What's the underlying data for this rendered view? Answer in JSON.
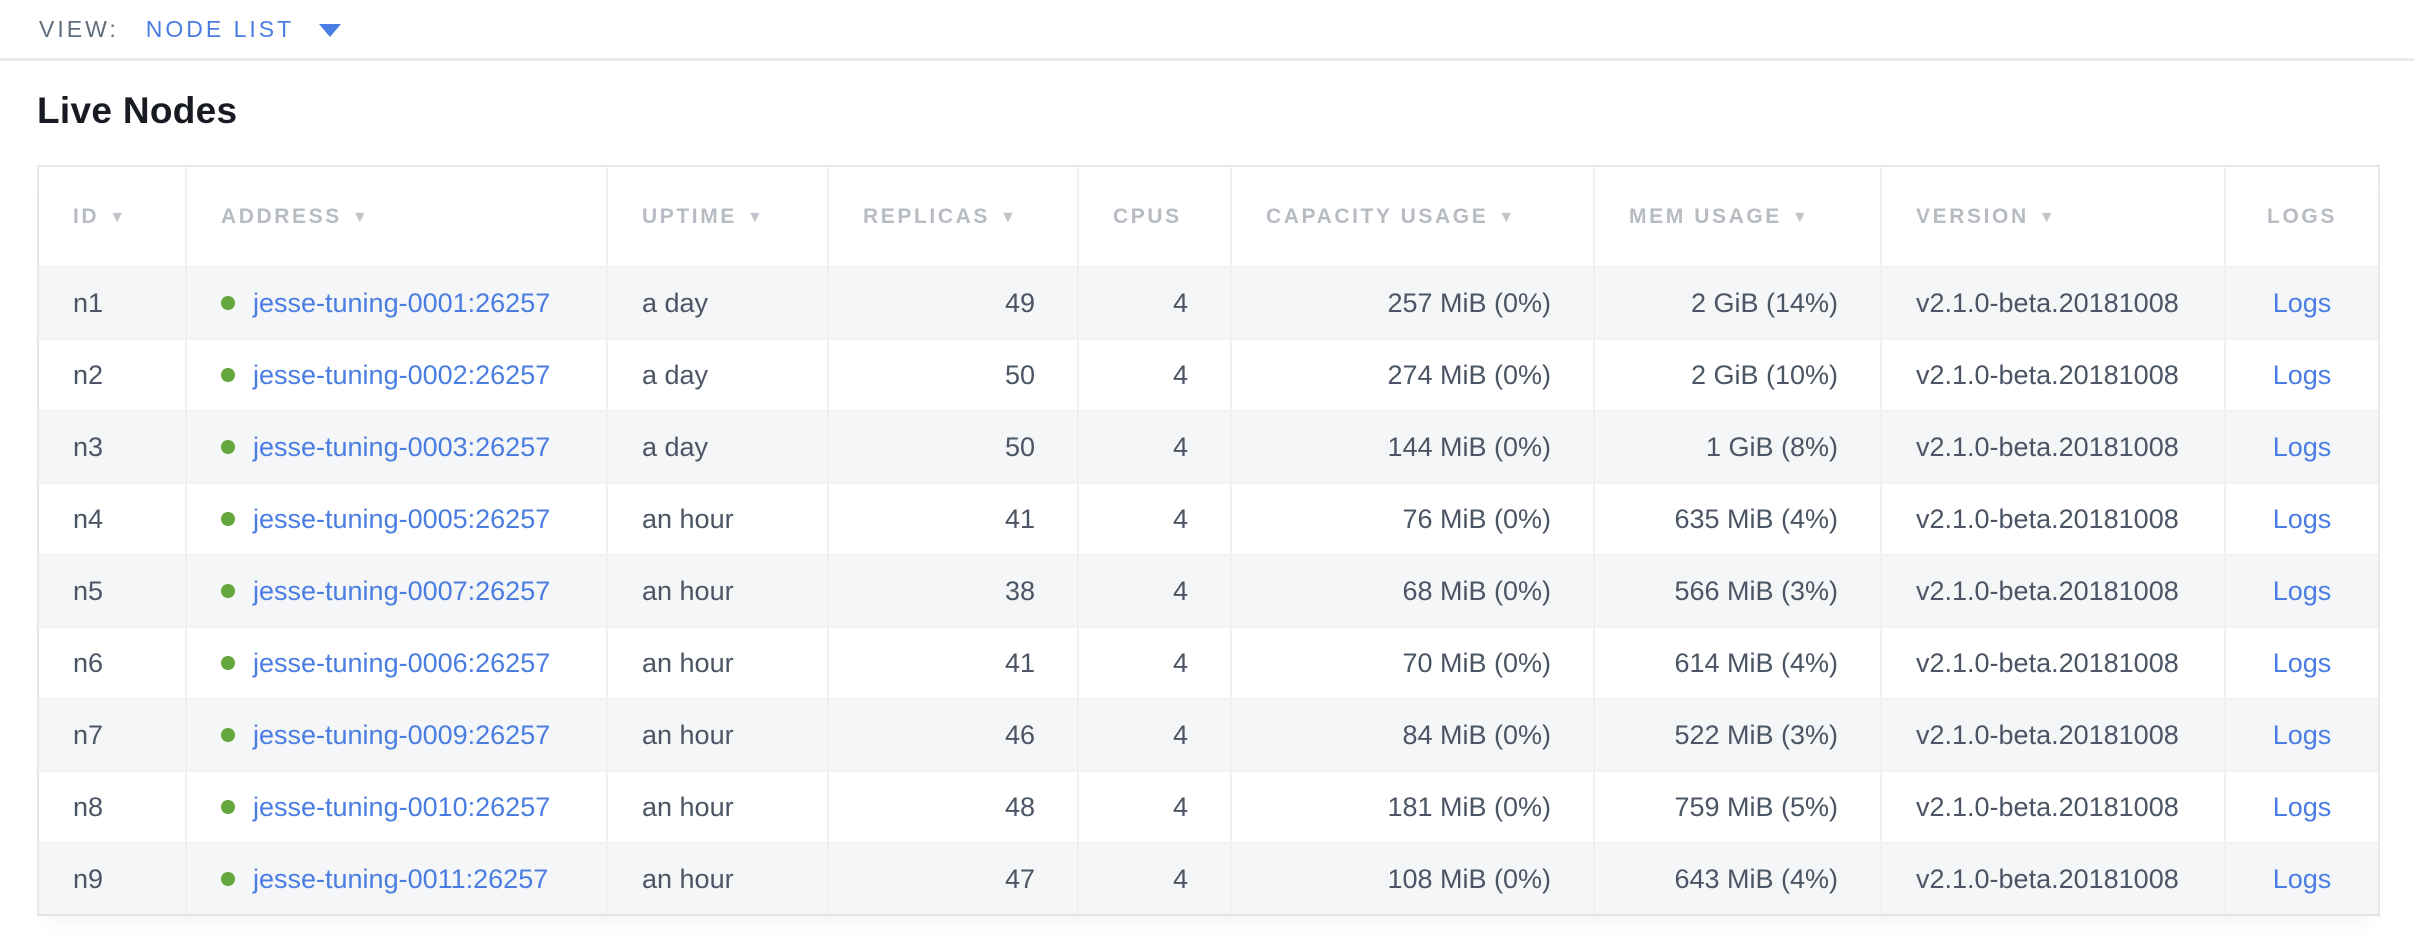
{
  "topbar": {
    "view_label": "VIEW:",
    "view_value": "NODE LIST"
  },
  "page": {
    "title": "Live Nodes"
  },
  "icons": {
    "sort_desc": "▼"
  },
  "colors": {
    "accent_blue": "#4a7de2",
    "live_node_green": "#62a63c",
    "header_gray": "#b7bcc3",
    "cell_slate": "#4c5565"
  },
  "table": {
    "columns": [
      {
        "key": "id",
        "label": "ID",
        "sorted": true
      },
      {
        "key": "address",
        "label": "ADDRESS",
        "sorted": true
      },
      {
        "key": "uptime",
        "label": "UPTIME",
        "sorted": true
      },
      {
        "key": "replicas",
        "label": "REPLICAS",
        "sorted": true
      },
      {
        "key": "cpus",
        "label": "CPUS",
        "sorted": false
      },
      {
        "key": "capacity",
        "label": "CAPACITY USAGE",
        "sorted": true
      },
      {
        "key": "mem",
        "label": "MEM USAGE",
        "sorted": true
      },
      {
        "key": "version",
        "label": "VERSION",
        "sorted": true
      },
      {
        "key": "logs",
        "label": "LOGS",
        "sorted": false
      }
    ],
    "rows": [
      {
        "id": "n1",
        "address": "jesse-tuning-0001:26257",
        "uptime": "a day",
        "replicas": "49",
        "cpus": "4",
        "capacity": "257 MiB (0%)",
        "mem": "2 GiB (14%)",
        "version": "v2.1.0-beta.20181008",
        "logs": "Logs"
      },
      {
        "id": "n2",
        "address": "jesse-tuning-0002:26257",
        "uptime": "a day",
        "replicas": "50",
        "cpus": "4",
        "capacity": "274 MiB (0%)",
        "mem": "2 GiB (10%)",
        "version": "v2.1.0-beta.20181008",
        "logs": "Logs"
      },
      {
        "id": "n3",
        "address": "jesse-tuning-0003:26257",
        "uptime": "a day",
        "replicas": "50",
        "cpus": "4",
        "capacity": "144 MiB (0%)",
        "mem": "1 GiB (8%)",
        "version": "v2.1.0-beta.20181008",
        "logs": "Logs"
      },
      {
        "id": "n4",
        "address": "jesse-tuning-0005:26257",
        "uptime": "an hour",
        "replicas": "41",
        "cpus": "4",
        "capacity": "76 MiB (0%)",
        "mem": "635 MiB (4%)",
        "version": "v2.1.0-beta.20181008",
        "logs": "Logs"
      },
      {
        "id": "n5",
        "address": "jesse-tuning-0007:26257",
        "uptime": "an hour",
        "replicas": "38",
        "cpus": "4",
        "capacity": "68 MiB (0%)",
        "mem": "566 MiB (3%)",
        "version": "v2.1.0-beta.20181008",
        "logs": "Logs"
      },
      {
        "id": "n6",
        "address": "jesse-tuning-0006:26257",
        "uptime": "an hour",
        "replicas": "41",
        "cpus": "4",
        "capacity": "70 MiB (0%)",
        "mem": "614 MiB (4%)",
        "version": "v2.1.0-beta.20181008",
        "logs": "Logs"
      },
      {
        "id": "n7",
        "address": "jesse-tuning-0009:26257",
        "uptime": "an hour",
        "replicas": "46",
        "cpus": "4",
        "capacity": "84 MiB (0%)",
        "mem": "522 MiB (3%)",
        "version": "v2.1.0-beta.20181008",
        "logs": "Logs"
      },
      {
        "id": "n8",
        "address": "jesse-tuning-0010:26257",
        "uptime": "an hour",
        "replicas": "48",
        "cpus": "4",
        "capacity": "181 MiB (0%)",
        "mem": "759 MiB (5%)",
        "version": "v2.1.0-beta.20181008",
        "logs": "Logs"
      },
      {
        "id": "n9",
        "address": "jesse-tuning-0011:26257",
        "uptime": "an hour",
        "replicas": "47",
        "cpus": "4",
        "capacity": "108 MiB (0%)",
        "mem": "643 MiB (4%)",
        "version": "v2.1.0-beta.20181008",
        "logs": "Logs"
      }
    ]
  }
}
